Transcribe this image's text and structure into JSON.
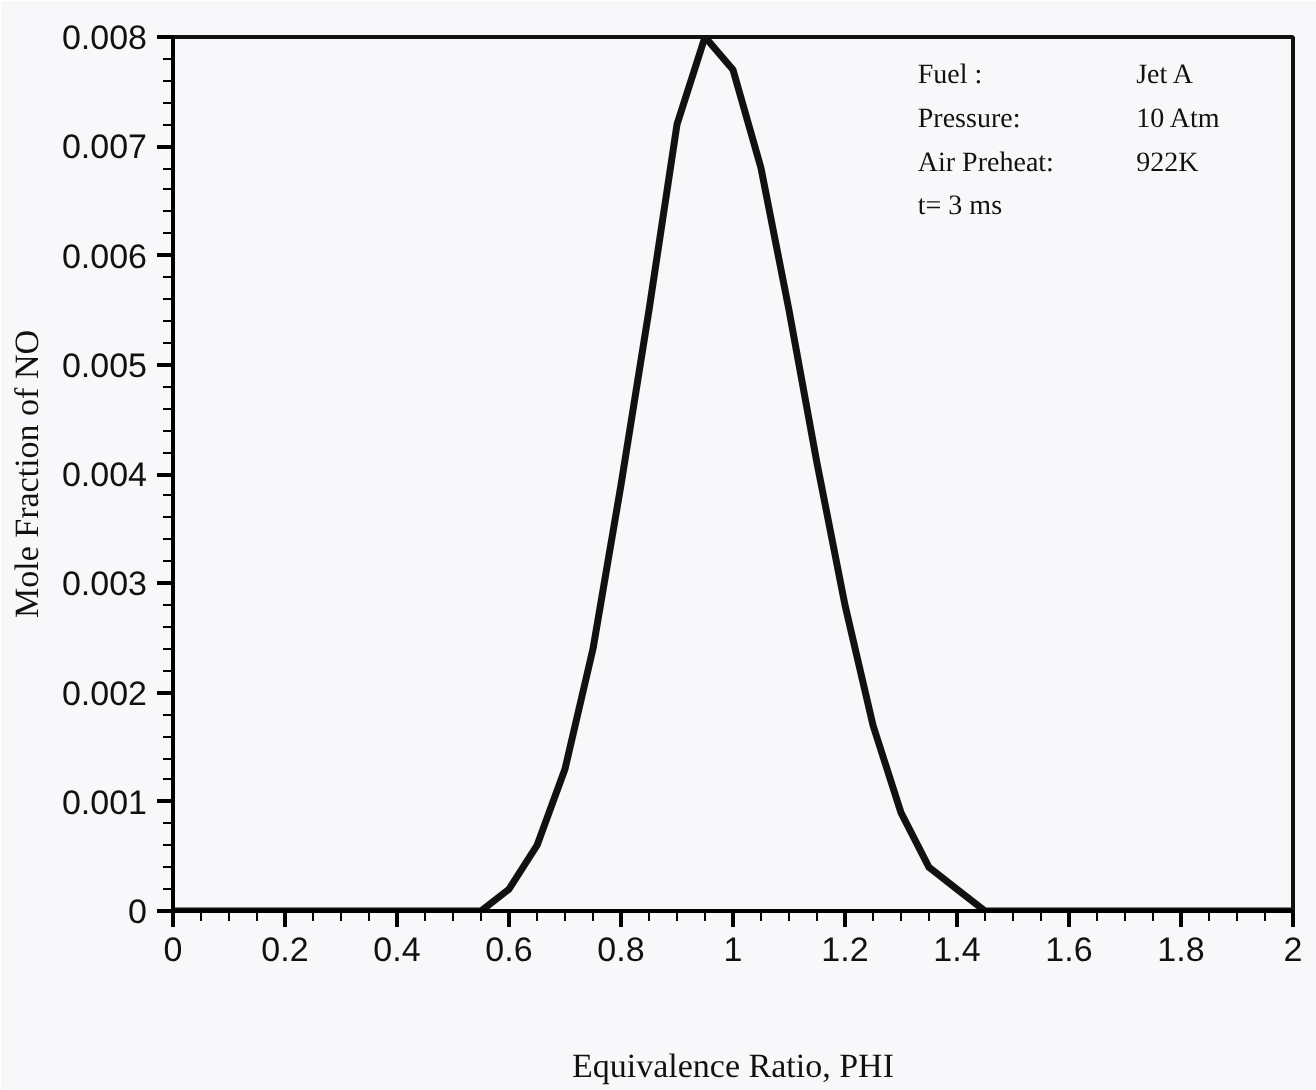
{
  "chart_data": {
    "type": "line",
    "xlabel": "Equivalence Ratio, PHI",
    "ylabel": "Mole Fraction of NO",
    "x": [
      0,
      0.5,
      0.55,
      0.6,
      0.65,
      0.7,
      0.75,
      0.8,
      0.85,
      0.9,
      0.95,
      1.0,
      1.05,
      1.1,
      1.15,
      1.2,
      1.25,
      1.3,
      1.35,
      1.4,
      1.45,
      1.5,
      2
    ],
    "series": [
      {
        "color": "#111111",
        "values": [
          0,
          0,
          0,
          0.0002,
          0.0006,
          0.0013,
          0.0024,
          0.0039,
          0.0055,
          0.0072,
          0.008,
          0.0077,
          0.0068,
          0.0055,
          0.0041,
          0.0028,
          0.0017,
          0.0009,
          0.0004,
          0.0002,
          0,
          0,
          0
        ]
      }
    ],
    "xlim": [
      0,
      2
    ],
    "ylim": [
      0,
      0.008
    ],
    "xticks": [
      0,
      0.2,
      0.4,
      0.6,
      0.8,
      1,
      1.2,
      1.4,
      1.6,
      1.8,
      2
    ],
    "yticks": [
      0,
      0.001,
      0.002,
      0.003,
      0.004,
      0.005,
      0.006,
      0.007,
      0.008
    ],
    "annotations": [
      "Fuel :\tJet A",
      "Pressure:\t10 Atm",
      "Air Preheat:\t922K",
      "t= 3 ms"
    ],
    "grid": false,
    "marker": "none",
    "line_style": "solid"
  }
}
